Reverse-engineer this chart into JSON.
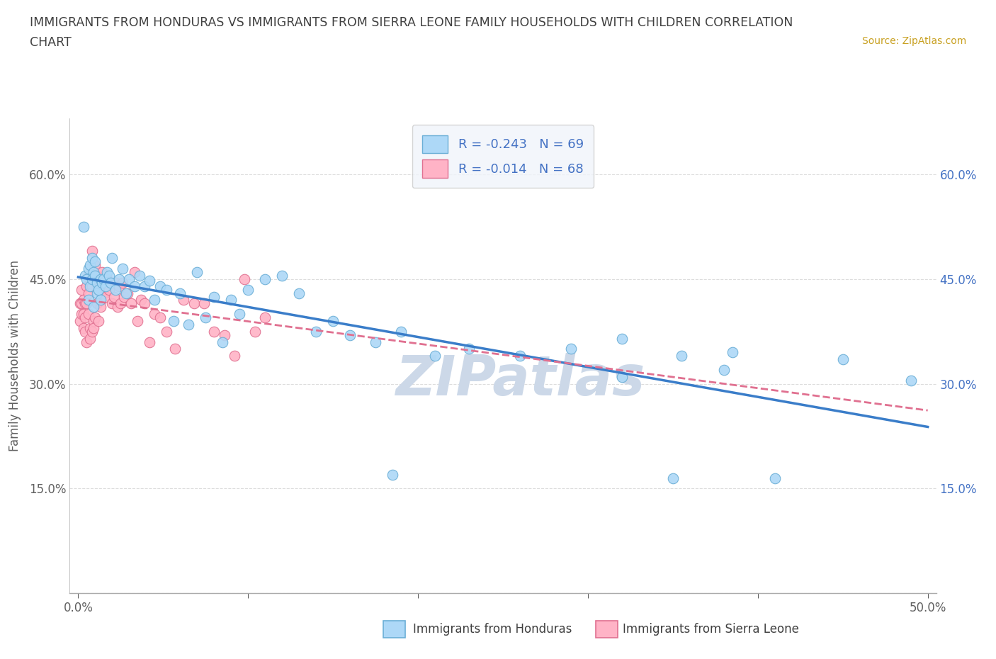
{
  "title_line1": "IMMIGRANTS FROM HONDURAS VS IMMIGRANTS FROM SIERRA LEONE FAMILY HOUSEHOLDS WITH CHILDREN CORRELATION",
  "title_line2": "CHART",
  "source_text": "Source: ZipAtlas.com",
  "ylabel": "Family Households with Children",
  "xlim": [
    -0.005,
    0.505
  ],
  "ylim": [
    0.0,
    0.68
  ],
  "xtick_vals": [
    0.0,
    0.1,
    0.2,
    0.3,
    0.4,
    0.5
  ],
  "xticklabels": [
    "0.0%",
    "",
    "",
    "",
    "",
    "50.0%"
  ],
  "ytick_vals": [
    0.0,
    0.15,
    0.3,
    0.45,
    0.6
  ],
  "left_yticklabels": [
    "",
    "15.0%",
    "30.0%",
    "45.0%",
    "60.0%"
  ],
  "right_yticklabels": [
    "",
    "15.0%",
    "30.0%",
    "45.0%",
    "60.0%"
  ],
  "legend_label1": "R = -0.243   N = 69",
  "legend_label2": "R = -0.014   N = 68",
  "legend_color1": "#add8f7",
  "legend_color2": "#ffb3c6",
  "scatter_color_honduras": "#add8f7",
  "scatter_color_sierraleone": "#ffb3c6",
  "scatter_edge_honduras": "#6aaed6",
  "scatter_edge_sierraleone": "#e07090",
  "trend_color_honduras": "#3a7dc9",
  "trend_color_sierraleone": "#e07090",
  "watermark_text": "ZIPatlas",
  "watermark_color": "#ccd8e8",
  "background_color": "#ffffff",
  "grid_color": "#dddddd",
  "title_color": "#404040",
  "axis_label_color": "#606060",
  "left_tick_color": "#606060",
  "right_tick_color": "#4472c4",
  "bottom_tick_color": "#606060",
  "legend_box_facecolor": "#f0f4fa",
  "legend_box_edgecolor": "#cccccc",
  "legend_text_color": "#4472c4",
  "source_color": "#c8a020",
  "bottom_label_color": "#404040",
  "honduras_x": [
    0.003,
    0.004,
    0.005,
    0.006,
    0.006,
    0.007,
    0.007,
    0.008,
    0.008,
    0.009,
    0.009,
    0.01,
    0.01,
    0.011,
    0.011,
    0.012,
    0.013,
    0.013,
    0.014,
    0.015,
    0.016,
    0.017,
    0.018,
    0.019,
    0.02,
    0.022,
    0.024,
    0.026,
    0.028,
    0.03,
    0.033,
    0.036,
    0.039,
    0.042,
    0.045,
    0.048,
    0.052,
    0.056,
    0.06,
    0.065,
    0.07,
    0.075,
    0.08,
    0.085,
    0.09,
    0.095,
    0.1,
    0.11,
    0.12,
    0.13,
    0.14,
    0.15,
    0.16,
    0.175,
    0.19,
    0.21,
    0.23,
    0.26,
    0.29,
    0.32,
    0.355,
    0.385,
    0.185,
    0.32,
    0.35,
    0.38,
    0.41,
    0.45,
    0.49
  ],
  "honduras_y": [
    0.525,
    0.455,
    0.45,
    0.465,
    0.42,
    0.44,
    0.47,
    0.45,
    0.48,
    0.46,
    0.41,
    0.455,
    0.475,
    0.43,
    0.445,
    0.435,
    0.45,
    0.42,
    0.445,
    0.45,
    0.44,
    0.46,
    0.455,
    0.445,
    0.48,
    0.435,
    0.45,
    0.465,
    0.43,
    0.45,
    0.44,
    0.455,
    0.44,
    0.448,
    0.42,
    0.44,
    0.435,
    0.39,
    0.43,
    0.385,
    0.46,
    0.395,
    0.425,
    0.36,
    0.42,
    0.4,
    0.435,
    0.45,
    0.455,
    0.43,
    0.375,
    0.39,
    0.37,
    0.36,
    0.375,
    0.34,
    0.35,
    0.34,
    0.35,
    0.365,
    0.34,
    0.345,
    0.17,
    0.31,
    0.165,
    0.32,
    0.165,
    0.335,
    0.305
  ],
  "sierraleone_x": [
    0.001,
    0.001,
    0.002,
    0.002,
    0.002,
    0.003,
    0.003,
    0.003,
    0.004,
    0.004,
    0.004,
    0.005,
    0.005,
    0.005,
    0.006,
    0.006,
    0.006,
    0.007,
    0.007,
    0.007,
    0.008,
    0.008,
    0.008,
    0.009,
    0.009,
    0.009,
    0.01,
    0.01,
    0.011,
    0.011,
    0.012,
    0.012,
    0.013,
    0.013,
    0.014,
    0.015,
    0.016,
    0.017,
    0.018,
    0.019,
    0.02,
    0.021,
    0.022,
    0.023,
    0.024,
    0.025,
    0.026,
    0.027,
    0.029,
    0.031,
    0.033,
    0.035,
    0.037,
    0.039,
    0.042,
    0.045,
    0.048,
    0.052,
    0.057,
    0.062,
    0.068,
    0.074,
    0.08,
    0.086,
    0.092,
    0.098,
    0.104,
    0.11
  ],
  "sierraleone_y": [
    0.415,
    0.39,
    0.4,
    0.435,
    0.415,
    0.42,
    0.38,
    0.4,
    0.415,
    0.395,
    0.375,
    0.415,
    0.44,
    0.36,
    0.43,
    0.4,
    0.455,
    0.38,
    0.445,
    0.365,
    0.44,
    0.375,
    0.49,
    0.39,
    0.46,
    0.38,
    0.47,
    0.395,
    0.415,
    0.455,
    0.435,
    0.39,
    0.41,
    0.43,
    0.46,
    0.43,
    0.425,
    0.45,
    0.435,
    0.445,
    0.415,
    0.425,
    0.445,
    0.41,
    0.44,
    0.415,
    0.445,
    0.425,
    0.43,
    0.415,
    0.46,
    0.39,
    0.42,
    0.415,
    0.36,
    0.4,
    0.395,
    0.375,
    0.35,
    0.42,
    0.415,
    0.415,
    0.375,
    0.37,
    0.34,
    0.45,
    0.375,
    0.395
  ]
}
